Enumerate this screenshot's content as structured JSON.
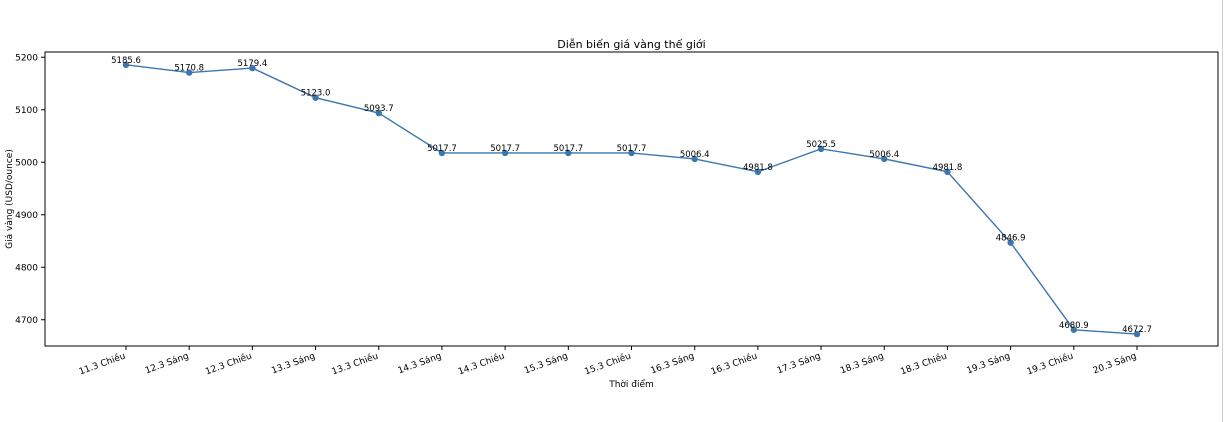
{
  "chart_data": {
    "type": "line",
    "title": "Diễn biến giá vàng thế giới",
    "xlabel": "Thời điểm",
    "ylabel": "Giá vàng (USD/ounce)",
    "ylim": [
      4650,
      5210
    ],
    "yticks": [
      4700,
      4800,
      4900,
      5000,
      5100,
      5200
    ],
    "ytick_labels": [
      "4700",
      "4800",
      "4900",
      "5000",
      "5100",
      "5200"
    ],
    "categories": [
      "11.3 Chiều",
      "12.3 Sáng",
      "12.3 Chiều",
      "13.3 Sáng",
      "13.3 Chiều",
      "14.3 Sáng",
      "14.3 Chiều",
      "15.3 Sáng",
      "15.3 Chiều",
      "16.3 Sáng",
      "16.3 Chiều",
      "17.3 Sáng",
      "18.3 Sáng",
      "18.3 Chiều",
      "19.3 Sáng",
      "19.3 Chiều",
      "20.3 Sáng"
    ],
    "values": [
      5185.6,
      5170.8,
      5179.4,
      5123.0,
      5093.7,
      5017.7,
      5017.7,
      5017.7,
      5017.7,
      5006.4,
      4981.8,
      5025.5,
      5006.4,
      4981.8,
      4846.9,
      4680.9,
      4672.7
    ],
    "value_labels": [
      "5185.6",
      "5170.8",
      "5179.4",
      "5123.0",
      "5093.7",
      "5017.7",
      "5017.7",
      "5017.7",
      "5017.7",
      "5006.4",
      "4981.8",
      "5025.5",
      "5006.4",
      "4981.8",
      "4846.9",
      "4680.9",
      "4672.7"
    ],
    "line_color": "#3b76af",
    "marker": "circle",
    "grid": false,
    "legend": "none"
  }
}
